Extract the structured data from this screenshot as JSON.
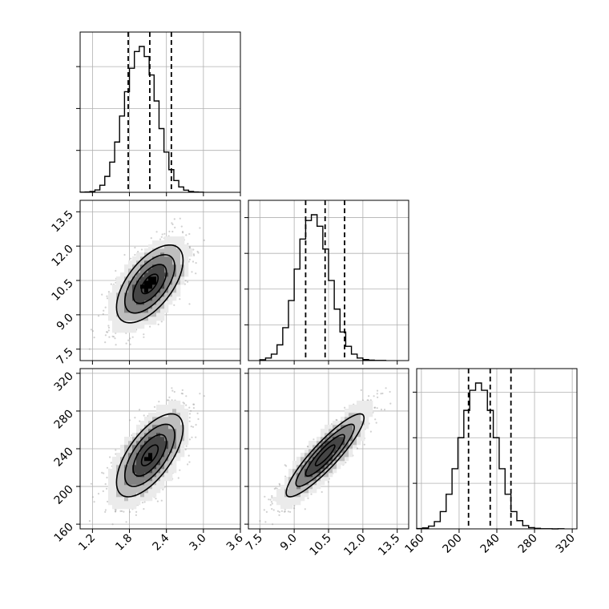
{
  "chart_data": {
    "type": "corner",
    "title": "",
    "grid": true,
    "colors": {
      "line": "#000000",
      "grid": "#b0b0b0",
      "points": "#9a9a9a",
      "frame": "#000000"
    },
    "parameters": [
      {
        "index": 0,
        "range": [
          1.0,
          3.6
        ],
        "ticks": [
          1.2,
          1.8,
          2.4,
          3.0,
          3.6
        ],
        "tick_labels": [
          "1.2",
          "1.8",
          "2.4",
          "3.0",
          "3.6"
        ],
        "quantiles": [
          1.78,
          2.13,
          2.48
        ],
        "mean": 2.13,
        "sd": 0.27
      },
      {
        "index": 1,
        "range": [
          7.0,
          14.0
        ],
        "ticks": [
          7.5,
          9.0,
          10.5,
          12.0,
          13.5
        ],
        "tick_labels": [
          "7.5",
          "9.0",
          "10.5",
          "12.0",
          "13.5"
        ],
        "quantiles": [
          9.5,
          10.35,
          11.2
        ],
        "mean": 10.35,
        "sd": 0.85
      },
      {
        "index": 2,
        "range": [
          155,
          325
        ],
        "ticks": [
          160,
          200,
          240,
          280,
          320
        ],
        "tick_labels": [
          "160",
          "200",
          "240",
          "280",
          "320"
        ],
        "quantiles": [
          210,
          233,
          255
        ],
        "mean": 233,
        "sd": 22
      }
    ],
    "correlations": [
      {
        "x": 0,
        "y": 1,
        "rho": 0.6
      },
      {
        "x": 0,
        "y": 2,
        "rho": 0.65
      },
      {
        "x": 1,
        "y": 2,
        "rho": 0.9
      }
    ],
    "histograms": [
      {
        "param": 0,
        "bin_edges": [
          1.0,
          1.08,
          1.16,
          1.24,
          1.32,
          1.4,
          1.48,
          1.56,
          1.64,
          1.72,
          1.8,
          1.88,
          1.96,
          2.04,
          2.12,
          2.2,
          2.28,
          2.36,
          2.44,
          2.52,
          2.6,
          2.68,
          2.76,
          2.84,
          2.92,
          3.0
        ],
        "counts": [
          1,
          2,
          5,
          14,
          42,
          95,
          180,
          300,
          455,
          600,
          740,
          840,
          870,
          810,
          700,
          545,
          380,
          240,
          135,
          70,
          32,
          13,
          5,
          2,
          1
        ]
      },
      {
        "param": 1,
        "bin_edges": [
          7.5,
          7.75,
          8.0,
          8.25,
          8.5,
          8.75,
          9.0,
          9.25,
          9.5,
          9.75,
          10.0,
          10.25,
          10.5,
          10.75,
          11.0,
          11.25,
          11.5,
          11.75,
          12.0,
          12.25,
          12.5,
          12.75,
          13.0
        ],
        "counts": [
          6,
          18,
          45,
          110,
          230,
          420,
          640,
          850,
          980,
          1020,
          940,
          780,
          560,
          360,
          200,
          100,
          45,
          18,
          7,
          3,
          1,
          1
        ]
      },
      {
        "param": 2,
        "bin_edges": [
          155,
          161.25,
          167.5,
          173.75,
          180,
          186.25,
          192.5,
          198.75,
          205,
          211.25,
          217.5,
          223.75,
          230,
          236.25,
          242.5,
          248.75,
          255,
          261.25,
          267.5,
          273.75,
          280,
          286.25,
          292.5,
          298.75,
          305,
          311.25
        ],
        "counts": [
          2,
          5,
          15,
          40,
          95,
          190,
          330,
          500,
          650,
          760,
          800,
          760,
          650,
          500,
          330,
          190,
          95,
          45,
          18,
          7,
          3,
          1,
          1,
          0,
          1
        ]
      }
    ]
  }
}
